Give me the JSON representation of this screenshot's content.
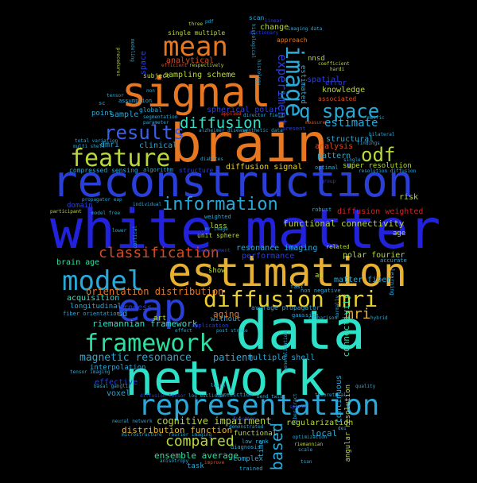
{
  "words": [
    {
      "text": "white matter",
      "color": "#2222dd"
    },
    {
      "text": "reconstruction",
      "color": "#2a3fd8"
    },
    {
      "text": "brain",
      "color": "#e87722"
    },
    {
      "text": "network",
      "color": "#2de0c8"
    },
    {
      "text": "data",
      "color": "#2de0c8"
    },
    {
      "text": "signal",
      "color": "#e87722"
    },
    {
      "text": "estimation",
      "color": "#e8b030"
    },
    {
      "text": "eap",
      "color": "#2a3fd8"
    },
    {
      "text": "representation",
      "color": "#2aa8d8"
    },
    {
      "text": "model",
      "color": "#2aa8d8"
    },
    {
      "text": "feature",
      "color": "#b8d83a"
    },
    {
      "text": "framework",
      "color": "#2de0a0"
    },
    {
      "text": "diffusion mri",
      "color": "#e8d030"
    },
    {
      "text": "mean",
      "color": "#e87722"
    },
    {
      "text": "image",
      "color": "#2aa8d8"
    },
    {
      "text": "results",
      "color": "#3a5fe8"
    },
    {
      "text": "information",
      "color": "#2aa8d8"
    },
    {
      "text": "q space",
      "color": "#2aa8d8"
    },
    {
      "text": "odf",
      "color": "#b8d83a"
    },
    {
      "text": "diffusion",
      "color": "#2de0c8"
    },
    {
      "text": "classification",
      "color": "#d84a22"
    },
    {
      "text": "compared",
      "color": "#b8d83a"
    },
    {
      "text": "experiment",
      "color": "#2a3fd8"
    },
    {
      "text": "based",
      "color": "#2aa8d8"
    },
    {
      "text": "mri",
      "color": "#e8b030"
    },
    {
      "text": "estimate",
      "color": "#2aa8d8"
    },
    {
      "text": "magnetic resonance",
      "color": "#2aa8d8"
    },
    {
      "text": "patient",
      "color": "#2aa8d8"
    },
    {
      "text": "cognitive impairment",
      "color": "#b8d83a"
    },
    {
      "text": "distribution function",
      "color": "#e8b030"
    },
    {
      "text": "orientation distribution",
      "color": "#e87722"
    },
    {
      "text": "riemannian framework",
      "color": "#2de0c8"
    },
    {
      "text": "ensemble average",
      "color": "#2de0a0"
    },
    {
      "text": "functional connectivity",
      "color": "#b8d83a"
    },
    {
      "text": "diffusion signal",
      "color": "#e8d030"
    },
    {
      "text": "sampling scheme",
      "color": "#b8d83a"
    },
    {
      "text": "spherical polar",
      "color": "#2a3fd8"
    },
    {
      "text": "structural",
      "color": "#2aa8d8"
    },
    {
      "text": "analysis",
      "color": "#d84a22"
    },
    {
      "text": "pattern",
      "color": "#2aa8d8"
    },
    {
      "text": "super resolution",
      "color": "#b8d83a"
    },
    {
      "text": "diffusion weighted",
      "color": "#d82222"
    },
    {
      "text": "polar fourier",
      "color": "#b8d83a"
    },
    {
      "text": "performance",
      "color": "#2a3fd8"
    },
    {
      "text": "resonance imaging",
      "color": "#2aa8d8"
    },
    {
      "text": "matter fiber",
      "color": "#2aa8d8"
    },
    {
      "text": "multiple shell",
      "color": "#2aa8d8"
    },
    {
      "text": "regularization",
      "color": "#b8d83a"
    },
    {
      "text": "local",
      "color": "#2aa8d8"
    },
    {
      "text": "connectivity",
      "color": "#2de0a0"
    },
    {
      "text": "continuous",
      "color": "#2aa8d8"
    },
    {
      "text": "angular resolution",
      "color": "#b8d83a"
    },
    {
      "text": "average propagator",
      "color": "#2aa8d8"
    },
    {
      "text": "aging",
      "color": "#e87722"
    },
    {
      "text": "without",
      "color": "#2aa8d8"
    },
    {
      "text": "art",
      "color": "#b8d83a"
    },
    {
      "text": "process",
      "color": "#2a3fd8"
    },
    {
      "text": "effective",
      "color": "#2a3fd8"
    },
    {
      "text": "voxel",
      "color": "#2aa8d8"
    },
    {
      "text": "acquisition",
      "color": "#2de0c8"
    },
    {
      "text": "longitudinal",
      "color": "#2aa8d8"
    },
    {
      "text": "interpolation",
      "color": "#2aa8d8"
    },
    {
      "text": "brain age",
      "color": "#2de0a0"
    },
    {
      "text": "dmri",
      "color": "#2aa8d8"
    },
    {
      "text": "clinical",
      "color": "#2aa8d8"
    },
    {
      "text": "domain",
      "color": "#2a3fd8"
    },
    {
      "text": "analytical",
      "color": "#d84a22"
    },
    {
      "text": "subject",
      "color": "#b8d83a"
    },
    {
      "text": "sample",
      "color": "#2aa8d8"
    },
    {
      "text": "global",
      "color": "#2aa8d8"
    },
    {
      "text": "change",
      "color": "#b8d83a"
    },
    {
      "text": "knowledge",
      "color": "#b8d83a"
    },
    {
      "text": "spatial",
      "color": "#2a3fd8"
    },
    {
      "text": "error",
      "color": "#2a3fd8"
    },
    {
      "text": "nnsd",
      "color": "#b8d83a"
    },
    {
      "text": "estimated",
      "color": "#2aa8d8"
    },
    {
      "text": "space",
      "color": "#2a3fd8"
    },
    {
      "text": "point",
      "color": "#2aa8d8"
    },
    {
      "text": "sd",
      "color": "#2aa8d8"
    },
    {
      "text": "loss",
      "color": "#b8d83a"
    },
    {
      "text": "risk",
      "color": "#b8d83a"
    },
    {
      "text": "age",
      "color": "#b8d83a"
    },
    {
      "text": "functional",
      "color": "#b8d83a"
    },
    {
      "text": "complex",
      "color": "#2aa8d8"
    },
    {
      "text": "task",
      "color": "#2aa8d8"
    },
    {
      "text": "show",
      "color": "#b8d83a"
    },
    {
      "text": "single multiple",
      "color": "#b8d83a"
    },
    {
      "text": "scan",
      "color": "#2aa8d8"
    },
    {
      "text": "approach",
      "color": "#e87722"
    },
    {
      "text": "associated",
      "color": "#d84a22"
    },
    {
      "text": "structure",
      "color": "#2a3fd8"
    },
    {
      "text": "unit sphere",
      "color": "#b8d83a"
    },
    {
      "text": "compressed sensing",
      "color": "#2aa8d8"
    },
    {
      "text": "algorithm",
      "color": "#2aa8d8"
    },
    {
      "text": "optimal",
      "color": "#2aa8d8"
    },
    {
      "text": "ad",
      "color": "#b8d83a"
    },
    {
      "text": "fast",
      "color": "#2aa8d8"
    },
    {
      "text": "non negative",
      "color": "#2aa8d8"
    },
    {
      "text": "application",
      "color": "#2a3fd8"
    },
    {
      "text": "fiber orientation",
      "color": "#2aa8d8"
    },
    {
      "text": "gaussian",
      "color": "#2aa8d8"
    },
    {
      "text": "weighted",
      "color": "#2aa8d8"
    },
    {
      "text": "accurate",
      "color": "#2aa8d8"
    },
    {
      "text": "related",
      "color": "#b8d83a"
    },
    {
      "text": "robust",
      "color": "#2aa8d8"
    },
    {
      "text": "time",
      "color": "#2aa8d8"
    },
    {
      "text": "trained",
      "color": "#2aa8d8"
    },
    {
      "text": "prediction",
      "color": "#2aa8d8"
    },
    {
      "text": "learning",
      "color": "#2aa8d8"
    },
    {
      "text": "present",
      "color": "#2a3fd8"
    },
    {
      "text": "low rank",
      "color": "#2aa8d8"
    },
    {
      "text": "diagnosis",
      "color": "#2aa8d8"
    },
    {
      "text": "optimization",
      "color": "#2aa8d8"
    },
    {
      "text": "riemannian",
      "color": "#b8d83a"
    },
    {
      "text": "scale",
      "color": "#2aa8d8"
    },
    {
      "text": "pdf",
      "color": "#2aa8d8"
    },
    {
      "text": "three",
      "color": "#b8d83a"
    },
    {
      "text": "coefficient",
      "color": "#b8d83a"
    },
    {
      "text": "hardi",
      "color": "#b8d83a"
    },
    {
      "text": "linear",
      "color": "#2a3fd8"
    },
    {
      "text": "dictionary",
      "color": "#2a3fd8"
    },
    {
      "text": "imaging data",
      "color": "#2aa8d8"
    },
    {
      "text": "tensor imaging",
      "color": "#2aa8d8"
    },
    {
      "text": "basal ganglia",
      "color": "#2aa8d8"
    },
    {
      "text": "total variation",
      "color": "#2aa8d8"
    },
    {
      "text": "multi shell",
      "color": "#2aa8d8"
    },
    {
      "text": "propagator eap",
      "color": "#2aa8d8"
    },
    {
      "text": "participant",
      "color": "#b8d83a"
    },
    {
      "text": "individual",
      "color": "#2aa8d8"
    },
    {
      "text": "alzheimer disease",
      "color": "#2aa8d8"
    },
    {
      "text": "diabetes",
      "color": "#2aa8d8"
    },
    {
      "text": "theoretical",
      "color": "#2aa8d8"
    },
    {
      "text": "quality",
      "color": "#2aa8d8"
    },
    {
      "text": "findings",
      "color": "#2aa8d8"
    },
    {
      "text": "bilateral",
      "color": "#2aa8d8"
    },
    {
      "text": "single",
      "color": "#2aa8d8"
    },
    {
      "text": "group",
      "color": "#2a3fd8"
    },
    {
      "text": "resolution diffusion",
      "color": "#2aa8d8"
    },
    {
      "text": "neural network",
      "color": "#2aa8d8"
    },
    {
      "text": "microstructure",
      "color": "#2aa8d8"
    },
    {
      "text": "fourier imaging",
      "color": "#2aa8d8"
    },
    {
      "text": "anisotropy",
      "color": "#2aa8d8"
    },
    {
      "text": "improve",
      "color": "#d84a22"
    },
    {
      "text": "tsan",
      "color": "#2aa8d8"
    },
    {
      "text": "dei",
      "color": "#2aa8d8"
    },
    {
      "text": "diffusion tensor",
      "color": "#2a3fd8"
    },
    {
      "text": "log euclidean",
      "color": "#2aa8d8"
    },
    {
      "text": "post stroke",
      "color": "#2aa8d8"
    },
    {
      "text": "demonstrated",
      "color": "#2aa8d8"
    },
    {
      "text": "bend twist",
      "color": "#2aa8d8"
    },
    {
      "text": "learn",
      "color": "#2aa8d8"
    },
    {
      "text": "sparse",
      "color": "#2a3fd8"
    },
    {
      "text": "lower",
      "color": "#2aa8d8"
    },
    {
      "text": "cortical",
      "color": "#2aa8d8"
    },
    {
      "text": "mr image",
      "color": "#2aa8d8"
    },
    {
      "text": "measurement",
      "color": "#2a3fd8"
    },
    {
      "text": "metric",
      "color": "#2aa8d8"
    },
    {
      "text": "segmentation",
      "color": "#2aa8d8"
    },
    {
      "text": "parameter",
      "color": "#2aa8d8"
    },
    {
      "text": "director field",
      "color": "#2aa8d8"
    },
    {
      "text": "synthetic data",
      "color": "#2aa8d8"
    },
    {
      "text": "measure",
      "color": "#d84a22"
    },
    {
      "text": "efficient",
      "color": "#d84a22"
    },
    {
      "text": "respectively",
      "color": "#b8d83a"
    },
    {
      "text": "assumption",
      "color": "#2aa8d8"
    },
    {
      "text": "sc",
      "color": "#2aa8d8"
    },
    {
      "text": "non",
      "color": "#2aa8d8"
    },
    {
      "text": "tensor",
      "color": "#2aa8d8"
    },
    {
      "text": "applied",
      "color": "#d84a22"
    },
    {
      "text": "comparison",
      "color": "#2aa8d8"
    },
    {
      "text": "generalization",
      "color": "#2aa8d8"
    },
    {
      "text": "normally",
      "color": "#2aa8d8"
    },
    {
      "text": "histological",
      "color": "#2aa8d8"
    },
    {
      "text": "histology",
      "color": "#2aa8d8"
    },
    {
      "text": "modeling",
      "color": "#2aa8d8"
    },
    {
      "text": "procedures",
      "color": "#b8d83a"
    },
    {
      "text": "hybrid",
      "color": "#2aa8d8"
    },
    {
      "text": "effect",
      "color": "#2aa8d8"
    },
    {
      "text": "fiber tract",
      "color": "#2aa8d8"
    },
    {
      "text": "model free",
      "color": "#2aa8d8"
    },
    {
      "text": "function",
      "color": "#2a3fd8"
    }
  ]
}
